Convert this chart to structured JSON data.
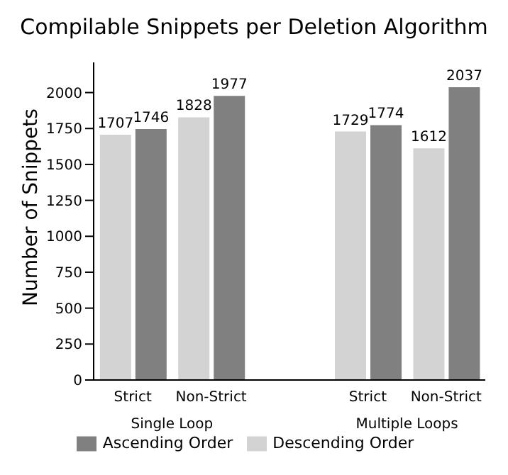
{
  "chart_data": {
    "type": "bar",
    "title": "Compilable Snippets per Deletion Algorithm",
    "ylabel": "Number of Snippets",
    "categories": [
      "Strict",
      "Non-Strict",
      null,
      "Strict",
      "Non-Strict"
    ],
    "series": [
      {
        "name": "Descending Order",
        "color": "#d3d3d3",
        "values": [
          1707,
          1828,
          null,
          1729,
          1612
        ]
      },
      {
        "name": "Ascending Order",
        "color": "#808080",
        "values": [
          1746,
          1977,
          null,
          1774,
          2037
        ]
      }
    ],
    "annotations": [
      "Single Loop",
      "Multiple Loops"
    ],
    "ylim": [
      0,
      2210
    ],
    "yticks": [
      0,
      250,
      500,
      750,
      1000,
      1250,
      1500,
      1750,
      2000
    ],
    "data_labels": true,
    "legend": "bottom",
    "grid": false
  }
}
